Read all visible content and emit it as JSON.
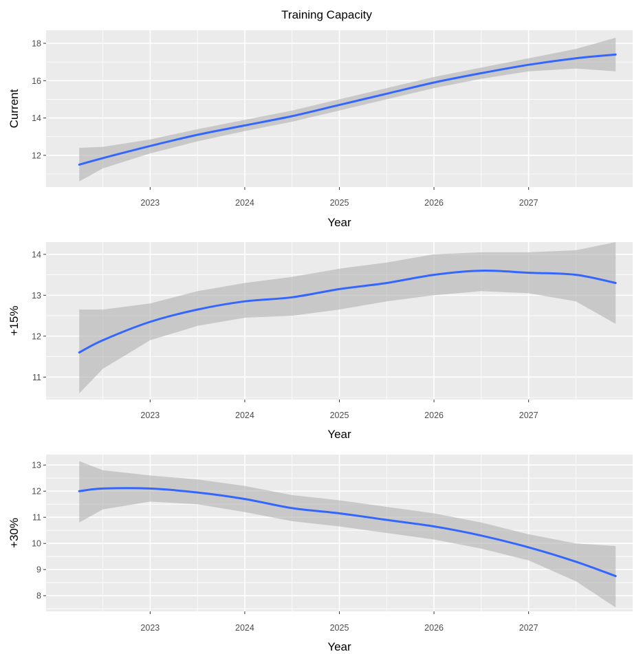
{
  "chart_data": [
    {
      "type": "line",
      "title": "Training Capacity",
      "xlabel": "Year",
      "ylabel": "Current",
      "xlim": [
        2021.9,
        2028.1
      ],
      "ylim": [
        10.3,
        18.7
      ],
      "xticks": [
        2023,
        2024,
        2025,
        2026,
        2027
      ],
      "xtick_labels": [
        "2023",
        "2024",
        "2025",
        "2026",
        "2027"
      ],
      "yticks": [
        12,
        14,
        16,
        18
      ],
      "ytick_labels": [
        "12",
        "14",
        "16",
        "18"
      ],
      "grid": true,
      "x": [
        2022.25,
        2022.5,
        2023.0,
        2023.5,
        2024.0,
        2024.5,
        2025.0,
        2025.5,
        2026.0,
        2026.5,
        2027.0,
        2027.5,
        2027.92
      ],
      "y": [
        11.5,
        11.85,
        12.5,
        13.1,
        13.6,
        14.1,
        14.7,
        15.3,
        15.9,
        16.4,
        16.85,
        17.2,
        17.4
      ],
      "lower": [
        10.6,
        11.3,
        12.1,
        12.75,
        13.3,
        13.8,
        14.4,
        15.0,
        15.6,
        16.1,
        16.5,
        16.65,
        16.5
      ],
      "upper": [
        12.4,
        12.45,
        12.85,
        13.4,
        13.9,
        14.4,
        15.0,
        15.6,
        16.2,
        16.7,
        17.2,
        17.7,
        18.3
      ]
    },
    {
      "type": "line",
      "title": "",
      "xlabel": "Year",
      "ylabel": "+15%",
      "xlim": [
        2021.9,
        2028.1
      ],
      "ylim": [
        10.45,
        14.3
      ],
      "xticks": [
        2023,
        2024,
        2025,
        2026,
        2027
      ],
      "xtick_labels": [
        "2023",
        "2024",
        "2025",
        "2026",
        "2027"
      ],
      "yticks": [
        11,
        12,
        13,
        14
      ],
      "ytick_labels": [
        "11",
        "12",
        "13",
        "14"
      ],
      "grid": true,
      "x": [
        2022.25,
        2022.5,
        2023.0,
        2023.5,
        2024.0,
        2024.5,
        2025.0,
        2025.5,
        2026.0,
        2026.5,
        2027.0,
        2027.5,
        2027.92
      ],
      "y": [
        11.6,
        11.9,
        12.35,
        12.65,
        12.85,
        12.95,
        13.15,
        13.3,
        13.5,
        13.6,
        13.55,
        13.5,
        13.3
      ],
      "lower": [
        10.6,
        11.2,
        11.9,
        12.25,
        12.45,
        12.5,
        12.65,
        12.85,
        13.0,
        13.1,
        13.05,
        12.85,
        12.3
      ],
      "upper": [
        12.65,
        12.65,
        12.8,
        13.1,
        13.3,
        13.45,
        13.65,
        13.8,
        14.0,
        14.05,
        14.05,
        14.1,
        14.3
      ]
    },
    {
      "type": "line",
      "title": "",
      "xlabel": "Year",
      "ylabel": "+30%",
      "xlim": [
        2021.9,
        2028.1
      ],
      "ylim": [
        7.4,
        13.4
      ],
      "xticks": [
        2023,
        2024,
        2025,
        2026,
        2027
      ],
      "xtick_labels": [
        "2023",
        "2024",
        "2025",
        "2026",
        "2027"
      ],
      "yticks": [
        8,
        9,
        10,
        11,
        12,
        13
      ],
      "ytick_labels": [
        "8",
        "9",
        "10",
        "11",
        "12",
        "13"
      ],
      "grid": true,
      "x": [
        2022.25,
        2022.5,
        2023.0,
        2023.5,
        2024.0,
        2024.5,
        2025.0,
        2025.5,
        2026.0,
        2026.5,
        2027.0,
        2027.5,
        2027.92
      ],
      "y": [
        12.0,
        12.1,
        12.1,
        11.95,
        11.7,
        11.35,
        11.15,
        10.9,
        10.65,
        10.3,
        9.85,
        9.3,
        8.75
      ],
      "lower": [
        10.8,
        11.3,
        11.6,
        11.5,
        11.2,
        10.85,
        10.65,
        10.4,
        10.15,
        9.8,
        9.35,
        8.55,
        7.55
      ],
      "upper": [
        13.15,
        12.8,
        12.6,
        12.45,
        12.2,
        11.85,
        11.65,
        11.4,
        11.15,
        10.8,
        10.35,
        10.0,
        9.9
      ]
    }
  ]
}
